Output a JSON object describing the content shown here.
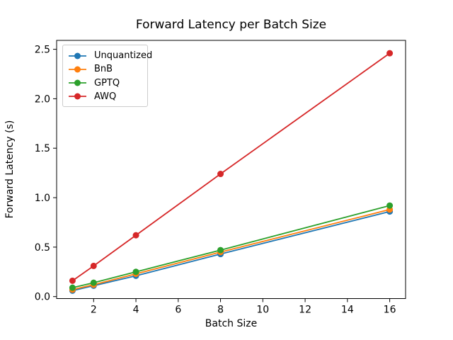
{
  "chart_data": {
    "type": "line",
    "title": "Forward Latency per Batch Size",
    "xlabel": "Batch Size",
    "ylabel": "Forward Latency (s)",
    "x": [
      1,
      2,
      4,
      8,
      16
    ],
    "series": [
      {
        "name": "Unquantized",
        "color": "#1f77b4",
        "values": [
          0.06,
          0.11,
          0.21,
          0.43,
          0.86
        ]
      },
      {
        "name": "BnB",
        "color": "#ff7f0e",
        "values": [
          0.07,
          0.12,
          0.23,
          0.45,
          0.88
        ]
      },
      {
        "name": "GPTQ",
        "color": "#2ca02c",
        "values": [
          0.09,
          0.14,
          0.25,
          0.47,
          0.92
        ]
      },
      {
        "name": "AWQ",
        "color": "#d62728",
        "values": [
          0.16,
          0.31,
          0.62,
          1.24,
          2.46
        ]
      }
    ],
    "x_tick_labels": [
      "2",
      "4",
      "6",
      "8",
      "10",
      "12",
      "14",
      "16"
    ],
    "x_tick_values": [
      2,
      4,
      6,
      8,
      10,
      12,
      14,
      16
    ],
    "y_tick_labels": [
      "0.0",
      "0.5",
      "1.0",
      "1.5",
      "2.0",
      "2.5"
    ],
    "y_tick_values": [
      0.0,
      0.5,
      1.0,
      1.5,
      2.0,
      2.5
    ],
    "xlim": [
      0.25,
      16.75
    ],
    "ylim": [
      -0.02,
      2.59
    ],
    "grid": false,
    "legend_position": "upper-left",
    "marker": "o",
    "axis_color": "#000000"
  }
}
